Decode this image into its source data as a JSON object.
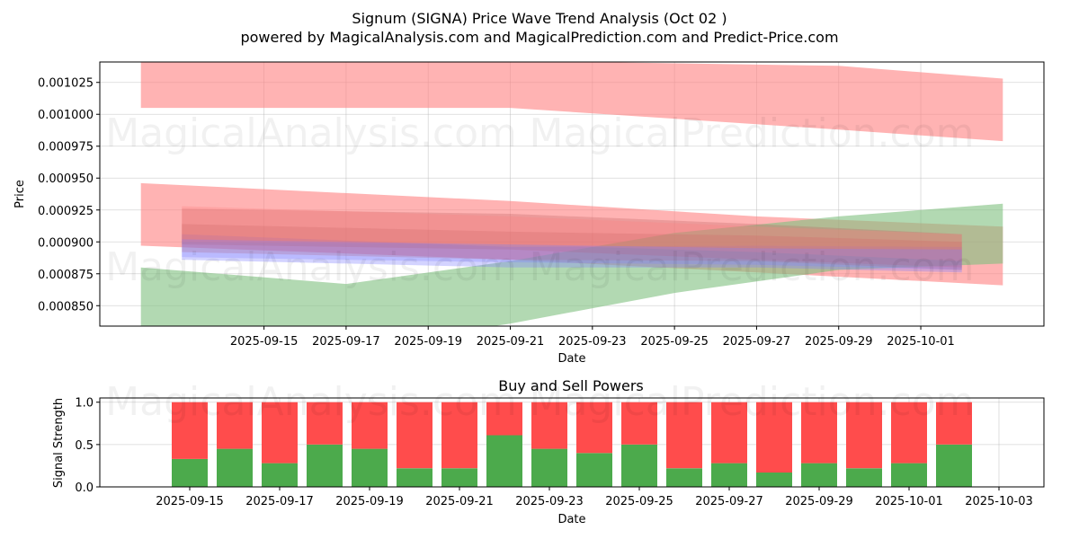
{
  "page": {
    "title": "Signum (SIGNA) Price Wave Trend Analysis (Oct 02 )",
    "subtitle": "powered by MagicalAnalysis.com and MagicalPrediction.com and Predict-Price.com",
    "watermarks": [
      "MagicalAnalysis.com",
      "MagicalPrediction.com"
    ]
  },
  "chart_data": [
    {
      "type": "area",
      "xlabel": "Date",
      "ylabel": "Price",
      "x_range": [
        "2025-09-11",
        "2025-10-04"
      ],
      "ylim": [
        0.000834,
        0.001041
      ],
      "x_ticks": [
        "2025-09-15",
        "2025-09-17",
        "2025-09-19",
        "2025-09-21",
        "2025-09-23",
        "2025-09-25",
        "2025-09-27",
        "2025-09-29",
        "2025-10-01"
      ],
      "y_ticks": [
        0.00085,
        0.000875,
        0.0009,
        0.000925,
        0.00095,
        0.000975,
        0.001,
        0.001025
      ],
      "grid": true,
      "colors": {
        "red": "#ff8080",
        "green": "#7fc07f",
        "blue": "#8080ff",
        "mixed": "#c06060"
      },
      "bands": [
        {
          "color": "red",
          "opacity": 0.6,
          "points": [
            {
              "x": "2025-09-12",
              "low": 0.001005,
              "high": 0.001042
            },
            {
              "x": "2025-09-21",
              "low": 0.001005,
              "high": 0.001042
            },
            {
              "x": "2025-09-29",
              "low": 0.000988,
              "high": 0.001038
            },
            {
              "x": "2025-10-03",
              "low": 0.000979,
              "high": 0.001028
            }
          ]
        },
        {
          "color": "red",
          "opacity": 0.6,
          "points": [
            {
              "x": "2025-09-12",
              "low": 0.000897,
              "high": 0.000946
            },
            {
              "x": "2025-09-21",
              "low": 0.000886,
              "high": 0.000932
            },
            {
              "x": "2025-09-27",
              "low": 0.000876,
              "high": 0.00092
            },
            {
              "x": "2025-10-03",
              "low": 0.000866,
              "high": 0.000912
            }
          ]
        },
        {
          "color": "green",
          "opacity": 0.6,
          "points": [
            {
              "x": "2025-09-12",
              "low": 0.000834,
              "high": 0.00088
            },
            {
              "x": "2025-09-17",
              "low": 0.000816,
              "high": 0.000867
            },
            {
              "x": "2025-09-21",
              "low": 0.000836,
              "high": 0.000885
            },
            {
              "x": "2025-09-25",
              "low": 0.00086,
              "high": 0.000907
            },
            {
              "x": "2025-09-29",
              "low": 0.000878,
              "high": 0.00092
            },
            {
              "x": "2025-10-03",
              "low": 0.000883,
              "high": 0.00093
            }
          ]
        },
        {
          "color": "blue",
          "opacity": 0.35,
          "points": [
            {
              "x": "2025-09-13",
              "low": 0.000886,
              "high": 0.000906
            },
            {
              "x": "2025-09-21",
              "low": 0.00088,
              "high": 0.000896
            },
            {
              "x": "2025-09-27",
              "low": 0.00088,
              "high": 0.000897
            },
            {
              "x": "2025-10-02",
              "low": 0.000876,
              "high": 0.000896
            }
          ]
        },
        {
          "color": "mixed",
          "opacity": 0.3,
          "points": [
            {
              "x": "2025-09-13",
              "low": 0.000898,
              "high": 0.000926
            },
            {
              "x": "2025-09-21",
              "low": 0.000894,
              "high": 0.000922
            },
            {
              "x": "2025-09-27",
              "low": 0.000886,
              "high": 0.000914
            },
            {
              "x": "2025-10-02",
              "low": 0.00088,
              "high": 0.000906
            }
          ]
        },
        {
          "color": "mixed",
          "opacity": 0.3,
          "points": [
            {
              "x": "2025-09-13",
              "low": 0.000892,
              "high": 0.000914
            },
            {
              "x": "2025-09-21",
              "low": 0.000886,
              "high": 0.000908
            },
            {
              "x": "2025-09-27",
              "low": 0.000885,
              "high": 0.000905
            },
            {
              "x": "2025-10-02",
              "low": 0.000878,
              "high": 0.0009
            }
          ]
        },
        {
          "color": "red",
          "opacity": 0.3,
          "points": [
            {
              "x": "2025-09-13",
              "low": 0.0009,
              "high": 0.000928
            },
            {
              "x": "2025-09-21",
              "low": 0.000898,
              "high": 0.00092
            },
            {
              "x": "2025-09-27",
              "low": 0.000892,
              "high": 0.000912
            },
            {
              "x": "2025-10-02",
              "low": 0.000885,
              "high": 0.000906
            }
          ]
        },
        {
          "color": "blue",
          "opacity": 0.3,
          "points": [
            {
              "x": "2025-09-13",
              "low": 0.000888,
              "high": 0.000902
            },
            {
              "x": "2025-09-21",
              "low": 0.000884,
              "high": 0.000898
            },
            {
              "x": "2025-09-27",
              "low": 0.000882,
              "high": 0.000895
            },
            {
              "x": "2025-10-02",
              "low": 0.000878,
              "high": 0.000894
            }
          ]
        }
      ]
    },
    {
      "type": "bar",
      "title": "Buy and Sell Powers",
      "xlabel": "Date",
      "ylabel": "Signal Strength",
      "x_range": [
        "2025-09-13",
        "2025-10-04"
      ],
      "ylim": [
        0,
        1.05
      ],
      "x_ticks": [
        "2025-09-15",
        "2025-09-17",
        "2025-09-19",
        "2025-09-21",
        "2025-09-23",
        "2025-09-25",
        "2025-09-27",
        "2025-09-29",
        "2025-10-01",
        "2025-10-03"
      ],
      "y_ticks": [
        "0.0",
        "0.5",
        "1.0"
      ],
      "grid": true,
      "colors": {
        "buy": "#4caa4c",
        "sell": "#ff4c4c"
      },
      "categories": [
        "2025-09-15",
        "2025-09-16",
        "2025-09-17",
        "2025-09-18",
        "2025-09-19",
        "2025-09-20",
        "2025-09-21",
        "2025-09-22",
        "2025-09-23",
        "2025-09-24",
        "2025-09-25",
        "2025-09-26",
        "2025-09-27",
        "2025-09-28",
        "2025-09-29",
        "2025-09-30",
        "2025-10-01",
        "2025-10-02"
      ],
      "series": [
        {
          "values": [
            0.33,
            0.45,
            0.28,
            0.5,
            0.45,
            0.22,
            0.22,
            0.61,
            0.45,
            0.4,
            0.5,
            0.22,
            0.28,
            0.17,
            0.28,
            0.22,
            0.28,
            0.5
          ]
        },
        {
          "values": [
            0.67,
            0.55,
            0.72,
            0.5,
            0.55,
            0.78,
            0.78,
            0.39,
            0.55,
            0.6,
            0.5,
            0.78,
            0.72,
            0.83,
            0.72,
            0.78,
            0.72,
            0.5
          ]
        }
      ]
    }
  ]
}
